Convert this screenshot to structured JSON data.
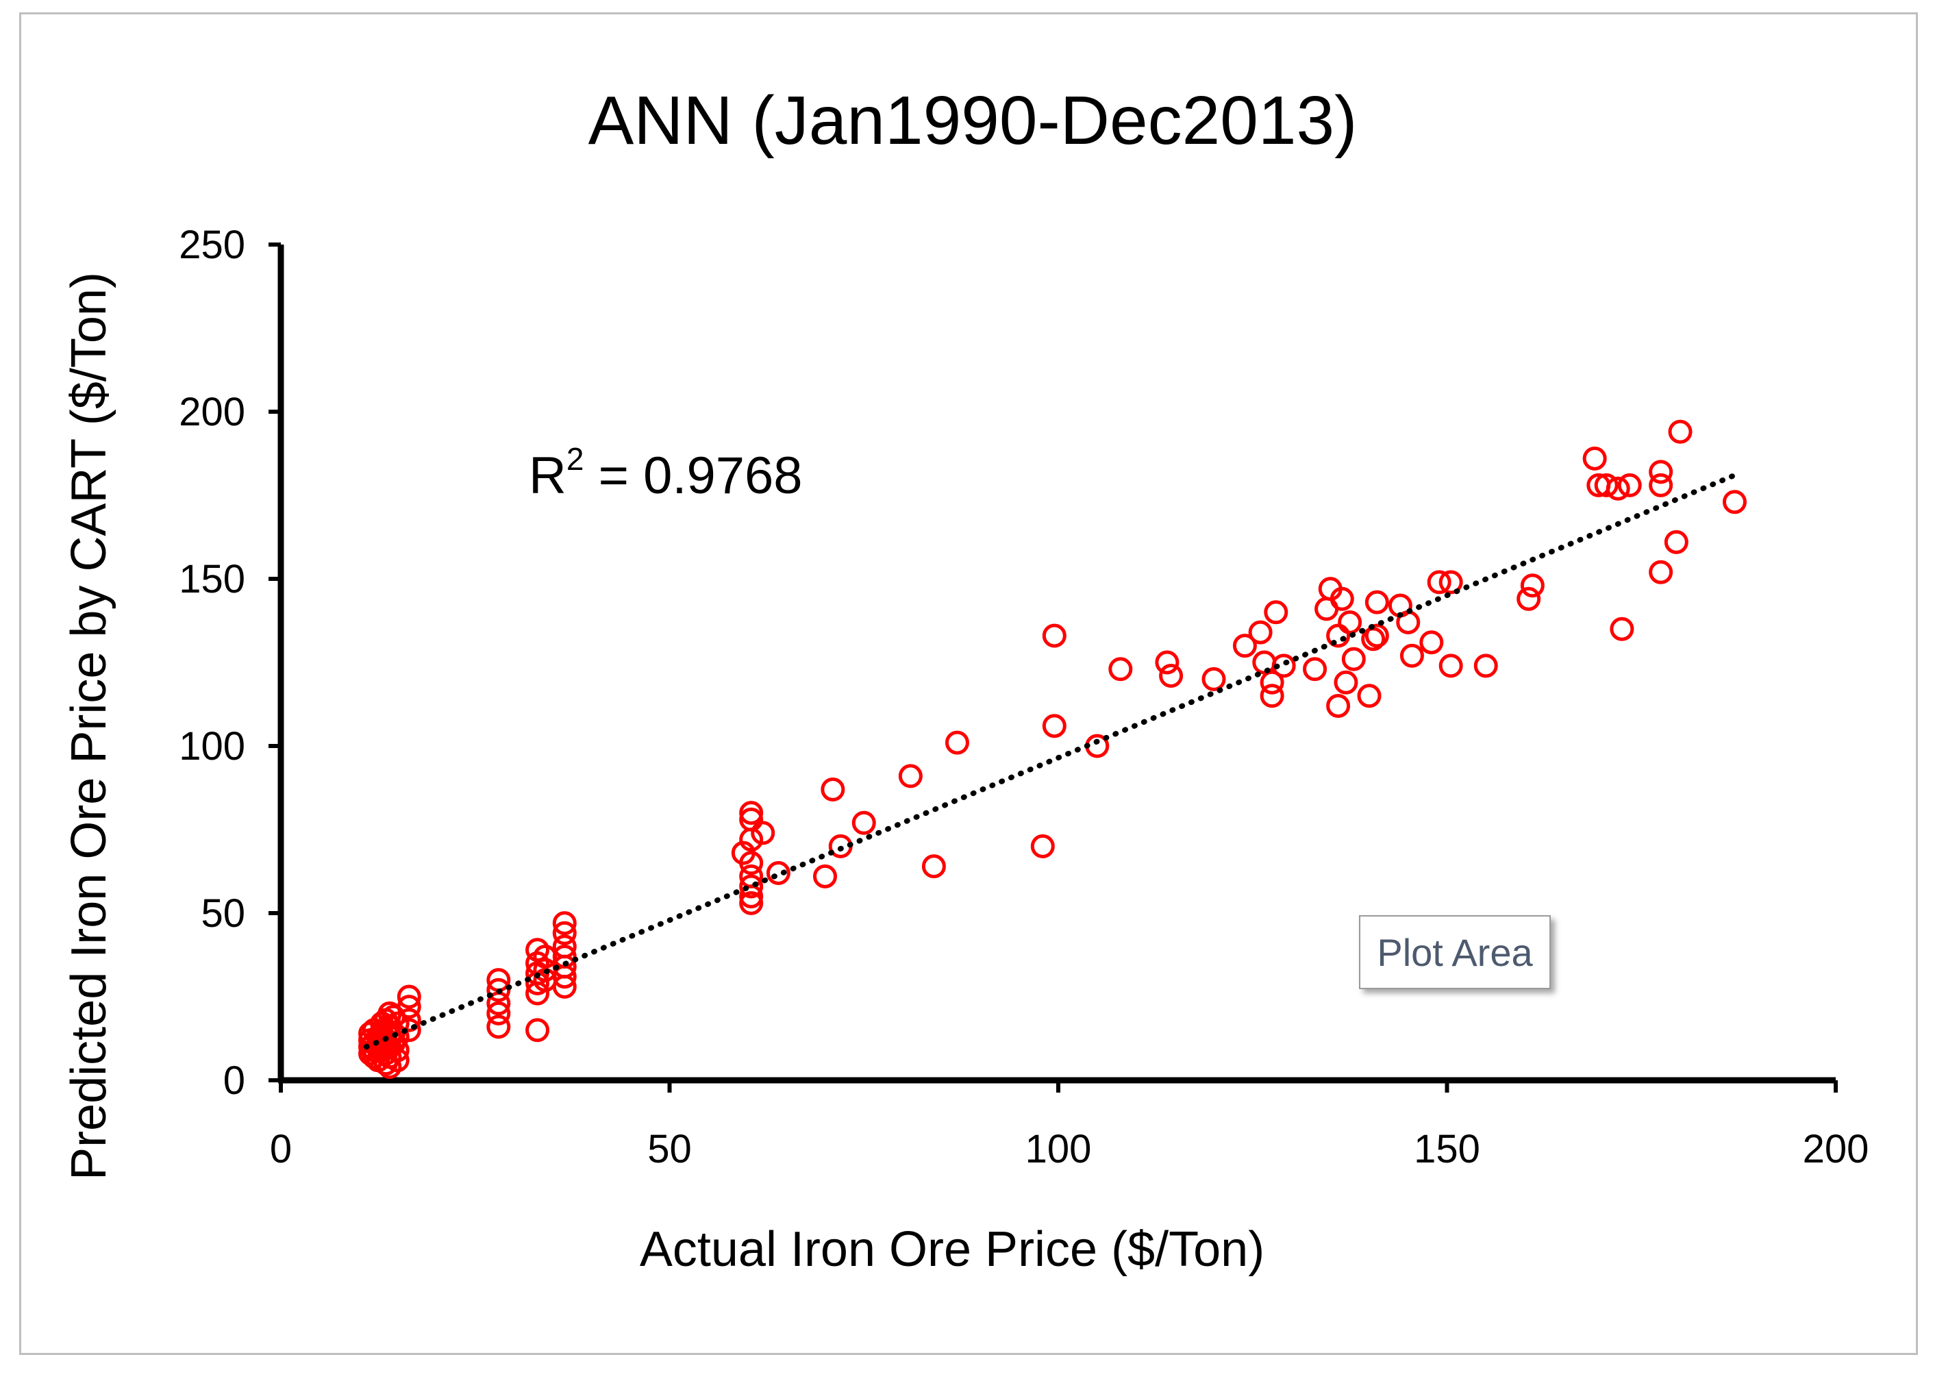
{
  "chart_data": {
    "type": "scatter",
    "title": "ANN (Jan1990-Dec2013)",
    "xlabel": "Actual Iron Ore Price ($/Ton)",
    "ylabel": "Predicted Iron Ore Price by CART ($/Ton)",
    "xlim": [
      0,
      200
    ],
    "ylim": [
      0,
      250
    ],
    "xticks": [
      0,
      50,
      100,
      150,
      200
    ],
    "yticks": [
      0,
      50,
      100,
      150,
      200,
      250
    ],
    "grid": false,
    "marker": "open-circle",
    "marker_color": "#ff0000",
    "trendline": {
      "style": "dotted",
      "color": "#000000",
      "x": [
        11,
        187
      ],
      "y": [
        10,
        181
      ]
    },
    "annotation": {
      "label": "R",
      "superscript": "2",
      "rest": " = 0.9768"
    },
    "tooltip": "Plot Area",
    "points": [
      [
        11.5,
        14
      ],
      [
        11.5,
        12
      ],
      [
        11.5,
        10
      ],
      [
        11.5,
        8
      ],
      [
        12,
        15
      ],
      [
        12,
        11
      ],
      [
        12,
        9
      ],
      [
        12,
        7
      ],
      [
        12.5,
        13
      ],
      [
        12.5,
        10
      ],
      [
        12.5,
        6
      ],
      [
        13,
        17
      ],
      [
        13,
        14
      ],
      [
        13,
        12
      ],
      [
        13,
        9
      ],
      [
        13.5,
        18
      ],
      [
        13.5,
        15
      ],
      [
        13.5,
        12
      ],
      [
        13.5,
        8
      ],
      [
        13.5,
        5
      ],
      [
        14,
        20
      ],
      [
        14,
        16
      ],
      [
        14,
        13
      ],
      [
        14,
        10
      ],
      [
        14,
        7
      ],
      [
        14,
        4
      ],
      [
        14.5,
        19
      ],
      [
        14.5,
        14
      ],
      [
        14.5,
        11
      ],
      [
        15,
        17
      ],
      [
        15,
        13
      ],
      [
        15,
        9
      ],
      [
        15,
        6
      ],
      [
        16.5,
        25
      ],
      [
        16.5,
        22
      ],
      [
        16.5,
        18
      ],
      [
        16.5,
        15
      ],
      [
        28,
        30
      ],
      [
        28,
        27
      ],
      [
        28,
        23
      ],
      [
        28,
        20
      ],
      [
        28,
        16
      ],
      [
        33,
        39
      ],
      [
        33,
        35
      ],
      [
        33,
        32
      ],
      [
        33,
        29
      ],
      [
        33,
        26
      ],
      [
        33,
        15
      ],
      [
        34,
        37
      ],
      [
        34,
        33
      ],
      [
        34,
        30
      ],
      [
        36.5,
        47
      ],
      [
        36.5,
        44
      ],
      [
        36.5,
        40
      ],
      [
        36.5,
        37
      ],
      [
        36.5,
        34
      ],
      [
        36.5,
        31
      ],
      [
        36.5,
        28
      ],
      [
        59.5,
        68
      ],
      [
        60.5,
        80
      ],
      [
        60.5,
        78
      ],
      [
        60.5,
        72
      ],
      [
        60.5,
        65
      ],
      [
        60.5,
        61
      ],
      [
        60.5,
        58
      ],
      [
        60.5,
        55
      ],
      [
        60.5,
        53
      ],
      [
        62,
        74
      ],
      [
        64,
        62
      ],
      [
        70,
        61
      ],
      [
        71,
        87
      ],
      [
        72,
        70
      ],
      [
        75,
        77
      ],
      [
        81,
        91
      ],
      [
        84,
        64
      ],
      [
        87,
        101
      ],
      [
        98,
        70
      ],
      [
        99.5,
        133
      ],
      [
        99.5,
        106
      ],
      [
        105,
        100
      ],
      [
        108,
        123
      ],
      [
        114,
        125
      ],
      [
        114.5,
        121
      ],
      [
        120,
        120
      ],
      [
        124,
        130
      ],
      [
        126,
        134
      ],
      [
        126.5,
        125
      ],
      [
        127.5,
        119
      ],
      [
        127.5,
        115
      ],
      [
        128,
        140
      ],
      [
        129,
        124
      ],
      [
        133,
        123
      ],
      [
        134.5,
        141
      ],
      [
        135,
        147
      ],
      [
        136,
        133
      ],
      [
        136,
        112
      ],
      [
        136.5,
        144
      ],
      [
        137,
        119
      ],
      [
        137.5,
        137
      ],
      [
        138,
        126
      ],
      [
        140,
        115
      ],
      [
        140.5,
        132
      ],
      [
        141,
        143
      ],
      [
        141,
        133
      ],
      [
        144,
        142
      ],
      [
        145,
        137
      ],
      [
        145.5,
        127
      ],
      [
        148,
        131
      ],
      [
        149,
        149
      ],
      [
        150.5,
        149
      ],
      [
        150.5,
        124
      ],
      [
        155,
        124
      ],
      [
        160.5,
        144
      ],
      [
        161,
        148
      ],
      [
        169,
        186
      ],
      [
        169.5,
        178
      ],
      [
        170.5,
        178
      ],
      [
        172,
        177
      ],
      [
        172.5,
        135
      ],
      [
        173.5,
        178
      ],
      [
        177.5,
        182
      ],
      [
        177.5,
        178
      ],
      [
        177.5,
        152
      ],
      [
        179.5,
        161
      ],
      [
        180,
        194
      ],
      [
        187,
        173
      ]
    ]
  }
}
